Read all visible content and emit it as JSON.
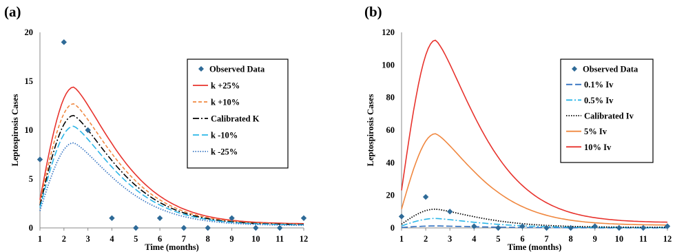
{
  "chart_data": [
    {
      "panel_label": "(a)",
      "type": "line",
      "xlabel": "Time (months)",
      "ylabel": "Leptospirosis Cases",
      "xlim": [
        1,
        12
      ],
      "ylim": [
        0,
        20
      ],
      "x_ticks": [
        "1",
        "2",
        "3",
        "4",
        "5",
        "6",
        "7",
        "8",
        "9",
        "10",
        "11",
        "12"
      ],
      "y_ticks": [
        "0",
        "5",
        "10",
        "15",
        "20"
      ],
      "observed": {
        "name": "Observed Data",
        "color": "#2e6a97",
        "x": [
          1,
          2,
          3,
          4,
          5,
          6,
          7,
          8,
          9,
          10,
          11,
          12
        ],
        "y": [
          7,
          19,
          10,
          1,
          0,
          1,
          0,
          0,
          1,
          0,
          0,
          1
        ]
      },
      "series": [
        {
          "name": "k +25%",
          "color": "#e8322c",
          "dash": "solid",
          "peak": 14.4
        },
        {
          "name": "k +10%",
          "color": "#f0873f",
          "dash": "dash",
          "peak": 12.7
        },
        {
          "name": "Calibrated K",
          "color": "#000000",
          "dash": "dashdot",
          "peak": 11.5
        },
        {
          "name": "k -10%",
          "color": "#2ab6e8",
          "dash": "longdash",
          "peak": 10.4
        },
        {
          "name": "k -25%",
          "color": "#3a78c4",
          "dash": "dot",
          "peak": 8.7
        }
      ],
      "legend": "right"
    },
    {
      "panel_label": "(b)",
      "type": "line",
      "xlabel": "Time (months)",
      "ylabel": "Leptospirosis Cases",
      "xlim": [
        1,
        12
      ],
      "ylim": [
        0,
        120
      ],
      "x_ticks": [
        "1",
        "2",
        "3",
        "4",
        "5",
        "6",
        "7",
        "8",
        "9",
        "10",
        "11",
        "12"
      ],
      "y_ticks": [
        "0",
        "20",
        "40",
        "60",
        "80",
        "100",
        "120"
      ],
      "observed": {
        "name": "Observed Data",
        "color": "#2e6a97",
        "x": [
          1,
          2,
          3,
          4,
          5,
          6,
          7,
          8,
          9,
          10,
          11,
          12
        ],
        "y": [
          7,
          19,
          10,
          1,
          0,
          1,
          0,
          0,
          1,
          0,
          0,
          1
        ]
      },
      "series": [
        {
          "name": "0.1% Iv",
          "color": "#2f6fbf",
          "dash": "longdash",
          "peak": 1.2
        },
        {
          "name": "0.5% Iv",
          "color": "#2ab6e8",
          "dash": "dashdot",
          "peak": 5.8
        },
        {
          "name": "Calibrated Iv",
          "color": "#000000",
          "dash": "dot",
          "peak": 11.5
        },
        {
          "name": "5% Iv",
          "color": "#f0873f",
          "dash": "solid",
          "peak": 57.8
        },
        {
          "name": "10% Iv",
          "color": "#e8322c",
          "dash": "solid",
          "peak": 115.2
        }
      ],
      "legend": "right"
    }
  ]
}
